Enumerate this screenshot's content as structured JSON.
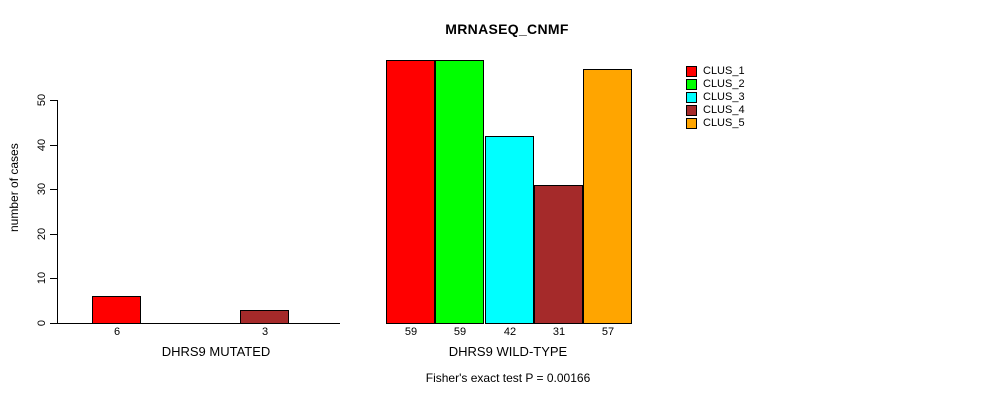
{
  "chart_data": {
    "type": "bar",
    "title": "MRNASEQ_CNMF",
    "ylabel": "number of cases",
    "yticks": [
      0,
      10,
      20,
      30,
      40,
      50
    ],
    "ylim": [
      0,
      59
    ],
    "grid": false,
    "legend": {
      "position": "right",
      "entries": [
        {
          "label": "CLUS_1",
          "color": "#ff0000"
        },
        {
          "label": "CLUS_2",
          "color": "#00ff00"
        },
        {
          "label": "CLUS_3",
          "color": "#00ffff"
        },
        {
          "label": "CLUS_4",
          "color": "#a52a2a"
        },
        {
          "label": "CLUS_5",
          "color": "#ffa500"
        }
      ]
    },
    "groups": [
      {
        "label": "DHRS9 MUTATED",
        "values": [
          6,
          0,
          0,
          3,
          0
        ]
      },
      {
        "label": "DHRS9 WILD-TYPE",
        "values": [
          59,
          59,
          42,
          31,
          57
        ]
      }
    ],
    "bar_value_labels": [
      6,
      3,
      59,
      59,
      42,
      31,
      57
    ],
    "annotation": "Fisher's exact test P = 0.00166"
  }
}
